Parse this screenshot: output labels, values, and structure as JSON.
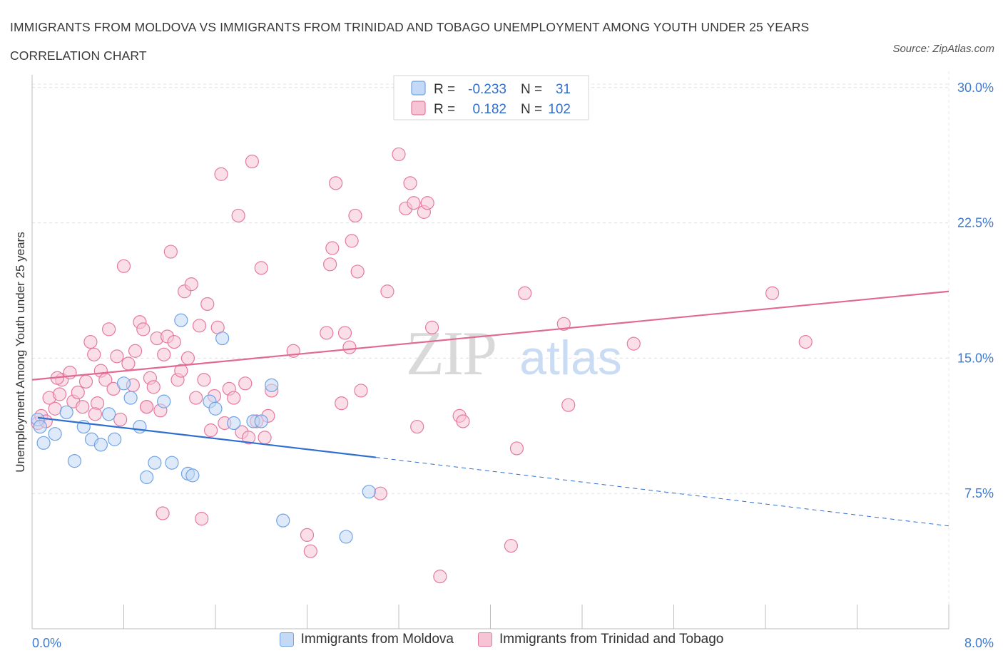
{
  "header": {
    "title": "IMMIGRANTS FROM MOLDOVA VS IMMIGRANTS FROM TRINIDAD AND TOBAGO UNEMPLOYMENT AMONG YOUTH UNDER 25 YEARS CORRELATION CHART",
    "source": "Source: ZipAtlas.com"
  },
  "chart_data": {
    "type": "scatter",
    "ylabel": "Unemployment Among Youth under 25 years",
    "xlim": [
      0,
      8
    ],
    "ylim": [
      0,
      30.9
    ],
    "x_ticks": [
      "0.0%",
      "8.0%"
    ],
    "y_ticks": [
      {
        "value": 7.5,
        "label": "7.5%"
      },
      {
        "value": 15,
        "label": "15.0%"
      },
      {
        "value": 22.5,
        "label": "22.5%"
      },
      {
        "value": 30,
        "label": "30.0%"
      }
    ],
    "grid": true,
    "legend": {
      "placement": "top-center",
      "rows": [
        {
          "r_label": "R =",
          "r_value": "-0.233",
          "n_label": "N =",
          "n_value": "31"
        },
        {
          "r_label": "R =",
          "r_value": "0.182",
          "n_label": "N =",
          "n_value": "102"
        }
      ]
    },
    "series": [
      {
        "name": "Immigrants from Moldova",
        "color": "#6fa3e6",
        "fill": "#c3d9f6",
        "trend": {
          "x0": 0.05,
          "y0": 11.7,
          "x1": 3.0,
          "y1": 9.5,
          "dash_to_x": 8.0,
          "dash_to_y": 5.7
        },
        "points": [
          [
            0.05,
            11.6
          ],
          [
            0.07,
            11.2
          ],
          [
            0.1,
            10.3
          ],
          [
            0.2,
            10.8
          ],
          [
            0.3,
            12.0
          ],
          [
            0.37,
            9.3
          ],
          [
            0.45,
            11.2
          ],
          [
            0.52,
            10.5
          ],
          [
            0.6,
            10.2
          ],
          [
            0.67,
            11.9
          ],
          [
            0.72,
            10.5
          ],
          [
            0.8,
            13.6
          ],
          [
            0.86,
            12.8
          ],
          [
            0.94,
            11.2
          ],
          [
            1.0,
            8.4
          ],
          [
            1.07,
            9.2
          ],
          [
            1.15,
            12.6
          ],
          [
            1.22,
            9.2
          ],
          [
            1.3,
            17.1
          ],
          [
            1.36,
            8.6
          ],
          [
            1.4,
            8.5
          ],
          [
            1.55,
            12.6
          ],
          [
            1.6,
            12.2
          ],
          [
            1.66,
            16.1
          ],
          [
            1.76,
            11.4
          ],
          [
            1.93,
            11.5
          ],
          [
            2.0,
            11.5
          ],
          [
            2.09,
            13.5
          ],
          [
            2.19,
            6.0
          ],
          [
            2.74,
            5.1
          ],
          [
            2.94,
            7.6
          ]
        ]
      },
      {
        "name": "Immigrants from Trinidad and Tobago",
        "color": "#e6799f",
        "fill": "#f7c4d5",
        "trend": {
          "x0": 0.0,
          "y0": 13.8,
          "x1": 8.0,
          "y1": 18.7
        },
        "points": [
          [
            0.05,
            11.4
          ],
          [
            0.08,
            11.8
          ],
          [
            0.12,
            11.5
          ],
          [
            0.15,
            12.8
          ],
          [
            0.2,
            12.2
          ],
          [
            0.24,
            13.0
          ],
          [
            0.26,
            13.8
          ],
          [
            0.33,
            14.2
          ],
          [
            0.36,
            12.6
          ],
          [
            0.4,
            13.1
          ],
          [
            0.44,
            12.3
          ],
          [
            0.47,
            13.7
          ],
          [
            0.51,
            15.9
          ],
          [
            0.54,
            15.2
          ],
          [
            0.57,
            12.5
          ],
          [
            0.6,
            14.3
          ],
          [
            0.64,
            13.8
          ],
          [
            0.67,
            16.6
          ],
          [
            0.71,
            13.3
          ],
          [
            0.74,
            15.1
          ],
          [
            0.77,
            11.6
          ],
          [
            0.8,
            20.1
          ],
          [
            0.84,
            14.7
          ],
          [
            0.88,
            13.5
          ],
          [
            0.9,
            15.4
          ],
          [
            0.94,
            17.0
          ],
          [
            0.97,
            16.6
          ],
          [
            1.0,
            12.3
          ],
          [
            1.03,
            13.9
          ],
          [
            1.06,
            13.4
          ],
          [
            1.09,
            16.1
          ],
          [
            1.12,
            12.1
          ],
          [
            1.15,
            15.2
          ],
          [
            1.18,
            16.2
          ],
          [
            1.21,
            20.9
          ],
          [
            1.24,
            15.9
          ],
          [
            1.27,
            13.8
          ],
          [
            1.3,
            14.3
          ],
          [
            1.33,
            18.7
          ],
          [
            1.36,
            15.0
          ],
          [
            1.39,
            19.1
          ],
          [
            1.43,
            12.8
          ],
          [
            1.46,
            16.8
          ],
          [
            1.5,
            13.8
          ],
          [
            1.53,
            18.0
          ],
          [
            1.56,
            11.0
          ],
          [
            1.59,
            12.9
          ],
          [
            1.62,
            16.7
          ],
          [
            1.65,
            25.2
          ],
          [
            1.68,
            11.4
          ],
          [
            1.72,
            13.3
          ],
          [
            1.76,
            12.8
          ],
          [
            1.8,
            22.9
          ],
          [
            1.83,
            10.9
          ],
          [
            1.86,
            13.6
          ],
          [
            1.89,
            10.6
          ],
          [
            1.92,
            25.9
          ],
          [
            1.96,
            11.5
          ],
          [
            2.0,
            20.0
          ],
          [
            2.03,
            10.6
          ],
          [
            2.06,
            11.8
          ],
          [
            2.09,
            13.2
          ],
          [
            2.28,
            15.4
          ],
          [
            2.4,
            5.2
          ],
          [
            2.43,
            4.3
          ],
          [
            2.57,
            16.4
          ],
          [
            2.6,
            20.2
          ],
          [
            2.62,
            21.1
          ],
          [
            2.65,
            24.7
          ],
          [
            2.7,
            12.5
          ],
          [
            2.73,
            16.4
          ],
          [
            2.77,
            15.6
          ],
          [
            2.79,
            21.5
          ],
          [
            2.82,
            22.9
          ],
          [
            2.84,
            19.8
          ],
          [
            2.87,
            13.2
          ],
          [
            3.04,
            7.5
          ],
          [
            3.1,
            18.7
          ],
          [
            3.2,
            26.3
          ],
          [
            3.26,
            23.3
          ],
          [
            3.3,
            24.7
          ],
          [
            3.33,
            23.6
          ],
          [
            3.36,
            11.2
          ],
          [
            3.42,
            23.1
          ],
          [
            3.45,
            23.6
          ],
          [
            3.49,
            16.7
          ],
          [
            3.56,
            2.9
          ],
          [
            3.73,
            11.8
          ],
          [
            3.76,
            11.5
          ],
          [
            4.18,
            4.6
          ],
          [
            4.23,
            10.0
          ],
          [
            4.3,
            18.6
          ],
          [
            4.64,
            16.9
          ],
          [
            4.68,
            12.4
          ],
          [
            5.25,
            15.8
          ],
          [
            6.46,
            18.6
          ],
          [
            6.75,
            15.9
          ],
          [
            0.22,
            13.9
          ],
          [
            0.55,
            11.9
          ],
          [
            1.14,
            6.4
          ],
          [
            1.48,
            6.1
          ],
          [
            1.0,
            12.3
          ]
        ]
      }
    ],
    "watermark": {
      "main": "ZIP",
      "sub": "atlas"
    }
  }
}
